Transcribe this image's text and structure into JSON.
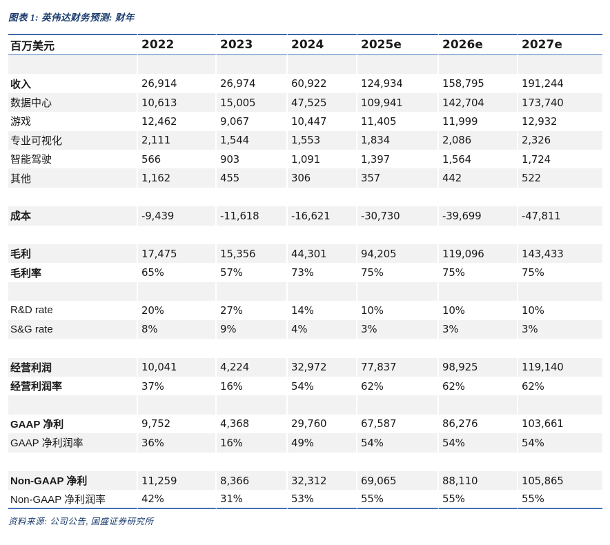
{
  "title": "图表 1: 英伟达财务预测: 财年",
  "source": "资料来源: 公司公告, 国盛证券研究所",
  "colors": {
    "title_text": "#1B3D6E",
    "header_top_border": "#3F68A9",
    "header_bottom_border": "#9DB6DC",
    "table_bottom_border": "#4272B4",
    "stripe_gray": "#F2F2F2",
    "body_text": "#1a1a1a"
  },
  "table": {
    "unit_label": "百万美元",
    "columns": [
      "2022",
      "2023",
      "2024",
      "2025e",
      "2026e",
      "2027e"
    ],
    "rows": [
      {
        "label": "",
        "bold": false,
        "values": [
          "",
          "",
          "",
          "",
          "",
          ""
        ]
      },
      {
        "label": "收入",
        "bold": true,
        "values": [
          "26,914",
          "26,974",
          "60,922",
          "124,934",
          "158,795",
          "191,244"
        ]
      },
      {
        "label": "数据中心",
        "bold": false,
        "values": [
          "10,613",
          "15,005",
          "47,525",
          "109,941",
          "142,704",
          "173,740"
        ]
      },
      {
        "label": "游戏",
        "bold": false,
        "values": [
          "12,462",
          "9,067",
          "10,447",
          "11,405",
          "11,999",
          "12,932"
        ]
      },
      {
        "label": "专业可视化",
        "bold": false,
        "values": [
          "2,111",
          "1,544",
          "1,553",
          "1,834",
          "2,086",
          "2,326"
        ]
      },
      {
        "label": "智能驾驶",
        "bold": false,
        "values": [
          "566",
          "903",
          "1,091",
          "1,397",
          "1,564",
          "1,724"
        ]
      },
      {
        "label": "其他",
        "bold": false,
        "values": [
          "1,162",
          "455",
          "306",
          "357",
          "442",
          "522"
        ]
      },
      {
        "label": "",
        "bold": false,
        "values": [
          "",
          "",
          "",
          "",
          "",
          ""
        ]
      },
      {
        "label": "成本",
        "bold": true,
        "values": [
          "-9,439",
          "-11,618",
          "-16,621",
          "-30,730",
          "-39,699",
          "-47,811"
        ]
      },
      {
        "label": "",
        "bold": false,
        "values": [
          "",
          "",
          "",
          "",
          "",
          ""
        ]
      },
      {
        "label": "毛利",
        "bold": true,
        "values": [
          "17,475",
          "15,356",
          "44,301",
          "94,205",
          "119,096",
          "143,433"
        ]
      },
      {
        "label": "毛利率",
        "bold": true,
        "values": [
          "65%",
          "57%",
          "73%",
          "75%",
          "75%",
          "75%"
        ]
      },
      {
        "label": "",
        "bold": false,
        "values": [
          "",
          "",
          "",
          "",
          "",
          ""
        ]
      },
      {
        "label": "R&D rate",
        "bold": false,
        "values": [
          "20%",
          "27%",
          "14%",
          "10%",
          "10%",
          "10%"
        ]
      },
      {
        "label": "S&G rate",
        "bold": false,
        "values": [
          "8%",
          "9%",
          "4%",
          "3%",
          "3%",
          "3%"
        ]
      },
      {
        "label": "",
        "bold": false,
        "values": [
          "",
          "",
          "",
          "",
          "",
          ""
        ]
      },
      {
        "label": "经营利润",
        "bold": true,
        "values": [
          "10,041",
          "4,224",
          "32,972",
          "77,837",
          "98,925",
          "119,140"
        ]
      },
      {
        "label": "经营利润率",
        "bold": true,
        "values": [
          "37%",
          "16%",
          "54%",
          "62%",
          "62%",
          "62%"
        ]
      },
      {
        "label": "",
        "bold": false,
        "values": [
          "",
          "",
          "",
          "",
          "",
          ""
        ]
      },
      {
        "label": "GAAP 净利",
        "bold": true,
        "values": [
          "9,752",
          "4,368",
          "29,760",
          "67,587",
          "86,276",
          "103,661"
        ]
      },
      {
        "label": "GAAP 净利润率",
        "bold": false,
        "values": [
          "36%",
          "16%",
          "49%",
          "54%",
          "54%",
          "54%"
        ]
      },
      {
        "label": "",
        "bold": false,
        "values": [
          "",
          "",
          "",
          "",
          "",
          ""
        ]
      },
      {
        "label": "Non-GAAP 净利",
        "bold": true,
        "values": [
          "11,259",
          "8,366",
          "32,312",
          "69,065",
          "88,110",
          "105,865"
        ]
      },
      {
        "label": "Non-GAAP 净利润率",
        "bold": false,
        "values": [
          "42%",
          "31%",
          "53%",
          "55%",
          "55%",
          "55%"
        ]
      }
    ]
  }
}
